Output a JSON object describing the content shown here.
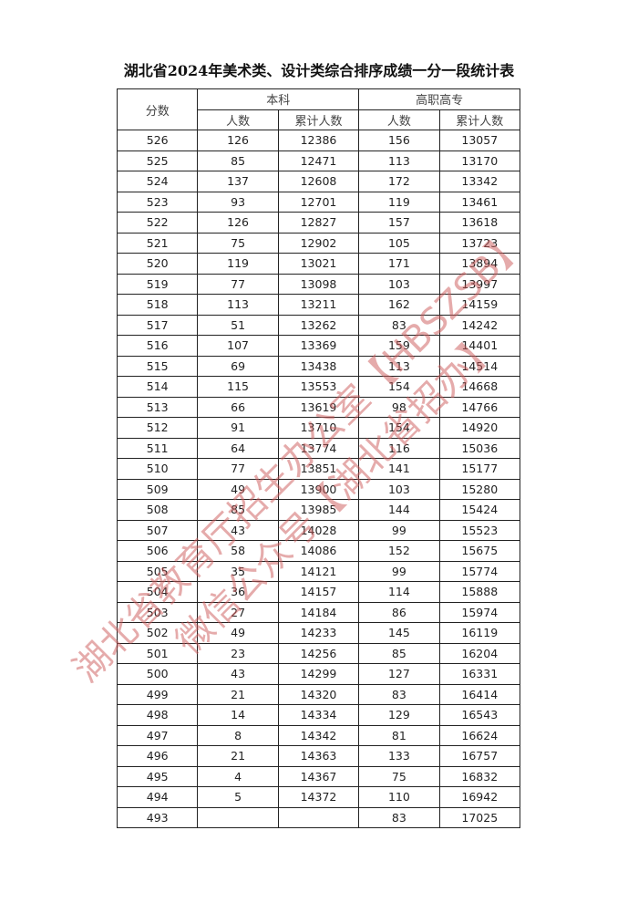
{
  "title": "湖北省2024年美术类、设计类综合排序成绩一分一段统计表",
  "headers": {
    "score": "分数",
    "undergrad": "本科",
    "vocational": "高职高专",
    "count": "人数",
    "cumulative": "累计人数"
  },
  "rows": [
    [
      "526",
      "126",
      "12386",
      "156",
      "13057"
    ],
    [
      "525",
      "85",
      "12471",
      "113",
      "13170"
    ],
    [
      "524",
      "137",
      "12608",
      "172",
      "13342"
    ],
    [
      "523",
      "93",
      "12701",
      "119",
      "13461"
    ],
    [
      "522",
      "126",
      "12827",
      "157",
      "13618"
    ],
    [
      "521",
      "75",
      "12902",
      "105",
      "13723"
    ],
    [
      "520",
      "119",
      "13021",
      "171",
      "13894"
    ],
    [
      "519",
      "77",
      "13098",
      "103",
      "13997"
    ],
    [
      "518",
      "113",
      "13211",
      "162",
      "14159"
    ],
    [
      "517",
      "51",
      "13262",
      "83",
      "14242"
    ],
    [
      "516",
      "107",
      "13369",
      "159",
      "14401"
    ],
    [
      "515",
      "69",
      "13438",
      "113",
      "14514"
    ],
    [
      "514",
      "115",
      "13553",
      "154",
      "14668"
    ],
    [
      "513",
      "66",
      "13619",
      "98",
      "14766"
    ],
    [
      "512",
      "91",
      "13710",
      "154",
      "14920"
    ],
    [
      "511",
      "64",
      "13774",
      "116",
      "15036"
    ],
    [
      "510",
      "77",
      "13851",
      "141",
      "15177"
    ],
    [
      "509",
      "49",
      "13900",
      "103",
      "15280"
    ],
    [
      "508",
      "85",
      "13985",
      "144",
      "15424"
    ],
    [
      "507",
      "43",
      "14028",
      "99",
      "15523"
    ],
    [
      "506",
      "58",
      "14086",
      "152",
      "15675"
    ],
    [
      "505",
      "35",
      "14121",
      "99",
      "15774"
    ],
    [
      "504",
      "36",
      "14157",
      "114",
      "15888"
    ],
    [
      "503",
      "27",
      "14184",
      "86",
      "15974"
    ],
    [
      "502",
      "49",
      "14233",
      "145",
      "16119"
    ],
    [
      "501",
      "23",
      "14256",
      "85",
      "16204"
    ],
    [
      "500",
      "43",
      "14299",
      "127",
      "16331"
    ],
    [
      "499",
      "21",
      "14320",
      "83",
      "16414"
    ],
    [
      "498",
      "14",
      "14334",
      "129",
      "16543"
    ],
    [
      "497",
      "8",
      "14342",
      "81",
      "16624"
    ],
    [
      "496",
      "21",
      "14363",
      "133",
      "16757"
    ],
    [
      "495",
      "4",
      "14367",
      "75",
      "16832"
    ],
    [
      "494",
      "5",
      "14372",
      "110",
      "16942"
    ],
    [
      "493",
      "",
      "",
      "83",
      "17025"
    ]
  ],
  "watermark": {
    "line1": "湖北省教育厅招生办公室【HBSZSB】",
    "line2": "微信公众号【湖北省招办】",
    "color": "#cd5a5a"
  }
}
